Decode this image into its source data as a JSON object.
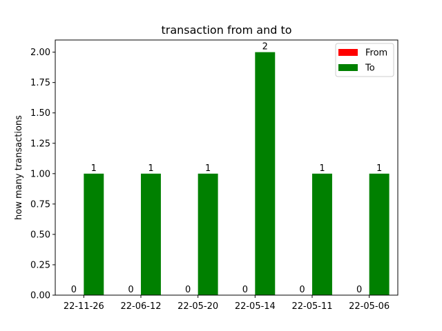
{
  "chart_data": {
    "type": "bar",
    "title": "transaction from and to",
    "xlabel": "",
    "ylabel": "how many transactions",
    "categories": [
      "22-11-26",
      "22-06-12",
      "22-05-20",
      "22-05-14",
      "22-05-11",
      "22-05-06"
    ],
    "series": [
      {
        "name": "From",
        "color": "#ff0000",
        "values": [
          0,
          0,
          0,
          0,
          0,
          0
        ]
      },
      {
        "name": "To",
        "color": "#008000",
        "values": [
          1,
          1,
          1,
          2,
          1,
          1
        ]
      }
    ],
    "ylim": [
      0,
      2.1
    ],
    "yticks": [
      "0.00",
      "0.25",
      "0.50",
      "0.75",
      "1.00",
      "1.25",
      "1.50",
      "1.75",
      "2.00"
    ],
    "bar_labels": true,
    "grid": false,
    "legend_position": "top-right"
  }
}
